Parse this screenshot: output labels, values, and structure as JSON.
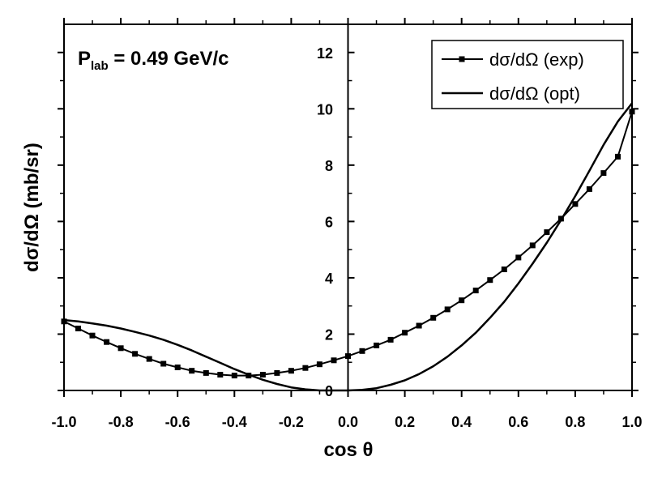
{
  "chart_data": {
    "type": "line",
    "annotation": {
      "main": "P",
      "sub": "lab",
      "rest": " = 0.49 GeV/c"
    },
    "xlabel": "cos θ",
    "ylabel": "dσ/dΩ (mb/sr)",
    "xlim": [
      -1.0,
      1.0
    ],
    "ylim": [
      0,
      13
    ],
    "xticks": [
      -1.0,
      -0.8,
      -0.6,
      -0.4,
      -0.2,
      0.0,
      0.2,
      0.4,
      0.6,
      0.8,
      1.0
    ],
    "xtick_labels": [
      "-1.0",
      "-0.8",
      "-0.6",
      "-0.4",
      "-0.2",
      "0.0",
      "0.2",
      "0.4",
      "0.6",
      "0.8",
      "1.0"
    ],
    "yticks": [
      0,
      2,
      4,
      6,
      8,
      10,
      12
    ],
    "ytick_labels": [
      "0",
      "2",
      "4",
      "6",
      "8",
      "10",
      "12"
    ],
    "legend_position": "top-right",
    "series": [
      {
        "name": "dσ/dΩ (exp)",
        "marker": "square",
        "x": [
          -1.0,
          -0.95,
          -0.9,
          -0.85,
          -0.8,
          -0.75,
          -0.7,
          -0.65,
          -0.6,
          -0.55,
          -0.5,
          -0.45,
          -0.4,
          -0.35,
          -0.3,
          -0.25,
          -0.2,
          -0.15,
          -0.1,
          -0.05,
          0.0,
          0.05,
          0.1,
          0.15,
          0.2,
          0.25,
          0.3,
          0.35,
          0.4,
          0.45,
          0.5,
          0.55,
          0.6,
          0.65,
          0.7,
          0.75,
          0.8,
          0.85,
          0.9,
          0.95,
          1.0
        ],
        "y": [
          2.45,
          2.2,
          1.95,
          1.72,
          1.5,
          1.3,
          1.12,
          0.95,
          0.82,
          0.7,
          0.62,
          0.56,
          0.53,
          0.53,
          0.56,
          0.62,
          0.7,
          0.8,
          0.93,
          1.07,
          1.22,
          1.4,
          1.6,
          1.8,
          2.05,
          2.3,
          2.58,
          2.88,
          3.2,
          3.55,
          3.92,
          4.3,
          4.72,
          5.15,
          5.62,
          6.1,
          6.62,
          7.15,
          7.72,
          8.3,
          9.9
        ]
      },
      {
        "name": "dσ/dΩ (opt)",
        "marker": "none",
        "x": [
          -1.0,
          -0.95,
          -0.9,
          -0.85,
          -0.8,
          -0.75,
          -0.7,
          -0.65,
          -0.6,
          -0.55,
          -0.5,
          -0.45,
          -0.4,
          -0.35,
          -0.3,
          -0.25,
          -0.2,
          -0.15,
          -0.1,
          -0.05,
          0.0,
          0.05,
          0.1,
          0.15,
          0.2,
          0.25,
          0.3,
          0.35,
          0.4,
          0.45,
          0.5,
          0.55,
          0.6,
          0.65,
          0.7,
          0.75,
          0.8,
          0.85,
          0.9,
          0.95,
          1.0
        ],
        "y": [
          2.5,
          2.45,
          2.38,
          2.3,
          2.2,
          2.08,
          1.95,
          1.8,
          1.62,
          1.42,
          1.2,
          0.98,
          0.76,
          0.56,
          0.38,
          0.23,
          0.11,
          0.04,
          0.0,
          0.0,
          0.0,
          0.02,
          0.08,
          0.2,
          0.36,
          0.58,
          0.86,
          1.2,
          1.6,
          2.05,
          2.58,
          3.15,
          3.8,
          4.5,
          5.25,
          6.05,
          6.9,
          7.8,
          8.72,
          9.55,
          10.2
        ]
      }
    ]
  }
}
